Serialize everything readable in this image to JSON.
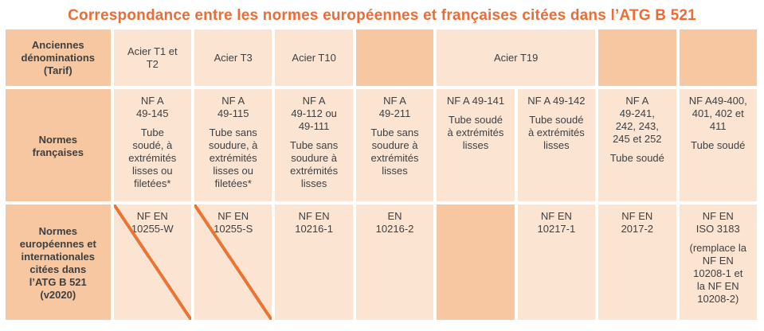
{
  "title": "Correspondance entre les normes européennes et françaises citées dans l’ATG B 521",
  "colors": {
    "accent_orange": "#ef6b33",
    "slash_orange": "#ea7434",
    "cell_dark": "#f6c7a0",
    "cell_light": "#fce4d2",
    "text": "#3f3f3f"
  },
  "table": {
    "row_headers": {
      "old_names": "Anciennes\ndénominations\n(Tarif)",
      "french": "Normes\nfrançaises",
      "european": "Normes\neuropéennes et\ninternationales\ncitées dans\nl’ATG B 521\n(v2020)"
    },
    "row1": {
      "c1": "Acier T1 et\nT2",
      "c2": "Acier T3",
      "c3": "Acier T10",
      "t19": "Acier T19"
    },
    "row2": {
      "c1": {
        "code": "NF A\n49-145",
        "desc": "Tube\nsoudé, à\nextrémités\nlisses ou\nfiletées*"
      },
      "c2": {
        "code": "NF A\n49-115",
        "desc": "Tube sans\nsoudure, à\nextrémités\nlisses ou\nfiletées*"
      },
      "c3": {
        "code": "NF A\n49-112 ou\n49-111",
        "desc": "Tube sans\nsoudure à\nextrémités\nlisses"
      },
      "c4": {
        "code": "NF A\n49-211",
        "desc": "Tube sans\nsoudure à\nextrémités\nlisses"
      },
      "c5": {
        "code": "NF A 49-141",
        "desc": "Tube soudé\nà extrémités\nlisses"
      },
      "c6": {
        "code": "NF A 49-142",
        "desc": "Tube soudé\nà extrémités\nlisses"
      },
      "c7": {
        "code": "NF A\n49-241,\n242, 243,\n245 et 252",
        "desc": "Tube soudé"
      },
      "c8": {
        "code": "NF A49-400,\n401, 402 et\n411",
        "desc": "Tube soudé"
      }
    },
    "row3": {
      "c1": {
        "code": "NF EN\n10255-W"
      },
      "c2": {
        "code": "NF EN\n10255-S"
      },
      "c3": {
        "code": "NF EN\n10216-1"
      },
      "c4": {
        "code": "EN\n10216-2"
      },
      "c6": {
        "code": "NF EN\n10217-1"
      },
      "c7": {
        "code": "NF EN\n2017-2"
      },
      "c8": {
        "code": "NF EN\nISO 3183",
        "desc": "(remplace la\nNF EN\n10208-1 et\nla NF EN\n10208-2)"
      }
    }
  }
}
